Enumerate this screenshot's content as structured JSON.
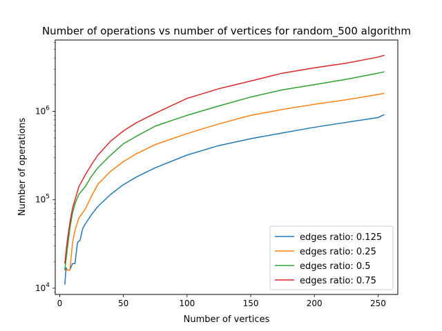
{
  "chart_data": {
    "type": "line",
    "title": "Number of operations vs number of vertices for random_500 algorithm",
    "xlabel": "Number of vertices",
    "ylabel": "Number of operations",
    "xlim": [
      -3.5,
      265.5
    ],
    "ylim": [
      8500,
      6400000
    ],
    "yscale": "log",
    "xticks": [
      0,
      50,
      100,
      150,
      200,
      250
    ],
    "xtick_labels": [
      "0",
      "50",
      "100",
      "150",
      "200",
      "250"
    ],
    "yticks": [
      10000,
      100000,
      1000000
    ],
    "ytick_labels": [
      "10^4",
      "10^5",
      "10^6"
    ],
    "grid": false,
    "legend_position": "lower-right",
    "series": [
      {
        "name": "edges ratio: 0.125",
        "color": "#1f77b4",
        "x": [
          4,
          5,
          6,
          8,
          10,
          12,
          14,
          16,
          18,
          20,
          25,
          30,
          40,
          50,
          60,
          75,
          100,
          125,
          150,
          175,
          200,
          225,
          250,
          255
        ],
        "y": [
          11000,
          17000,
          16000,
          16000,
          19000,
          19000,
          33000,
          35000,
          47000,
          53000,
          68000,
          84000,
          115000,
          148000,
          180000,
          230000,
          320000,
          410000,
          490000,
          570000,
          660000,
          750000,
          850000,
          920000
        ]
      },
      {
        "name": "edges ratio: 0.25",
        "color": "#ff7f0e",
        "x": [
          4,
          6,
          8,
          10,
          12,
          15,
          20,
          25,
          30,
          40,
          50,
          60,
          75,
          100,
          125,
          150,
          175,
          200,
          225,
          250,
          255
        ],
        "y": [
          16000,
          16000,
          16000,
          32000,
          45000,
          62000,
          78000,
          110000,
          150000,
          210000,
          270000,
          330000,
          420000,
          560000,
          720000,
          900000,
          1050000,
          1200000,
          1350000,
          1550000,
          1600000
        ]
      },
      {
        "name": "edges ratio: 0.5",
        "color": "#2ca02c",
        "x": [
          4,
          6,
          8,
          10,
          12,
          15,
          20,
          25,
          30,
          40,
          50,
          60,
          75,
          100,
          125,
          150,
          175,
          200,
          225,
          250,
          255
        ],
        "y": [
          16000,
          28000,
          48000,
          70000,
          90000,
          115000,
          140000,
          185000,
          230000,
          320000,
          430000,
          520000,
          680000,
          900000,
          1150000,
          1450000,
          1750000,
          2000000,
          2300000,
          2700000,
          2800000
        ]
      },
      {
        "name": "edges ratio: 0.75",
        "color": "#d62728",
        "x": [
          4,
          6,
          8,
          10,
          12,
          15,
          20,
          25,
          30,
          40,
          50,
          60,
          75,
          100,
          125,
          150,
          175,
          200,
          225,
          250,
          255
        ],
        "y": [
          19000,
          35000,
          55000,
          80000,
          100000,
          140000,
          190000,
          250000,
          320000,
          460000,
          600000,
          740000,
          950000,
          1400000,
          1800000,
          2200000,
          2700000,
          3100000,
          3500000,
          4100000,
          4300000
        ]
      }
    ]
  }
}
